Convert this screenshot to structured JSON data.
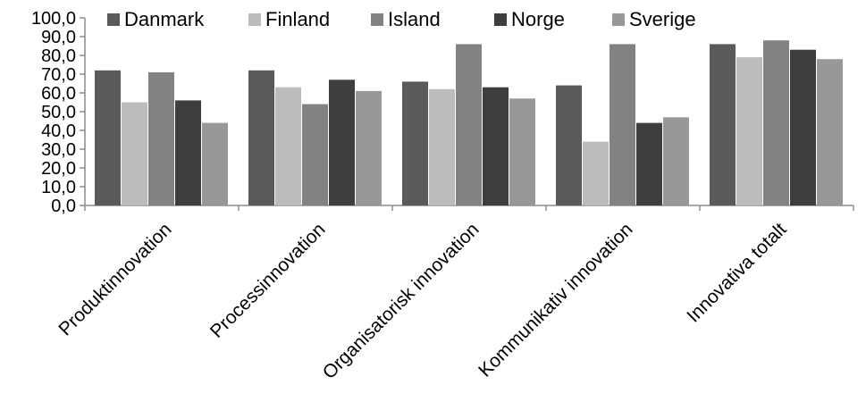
{
  "chart_data": {
    "type": "bar",
    "title": "",
    "xlabel": "",
    "ylabel": "",
    "ylim": [
      0,
      100
    ],
    "y_ticks": [
      "0,0",
      "10,0",
      "20,0",
      "30,0",
      "40,0",
      "50,0",
      "60,0",
      "70,0",
      "80,0",
      "90,0",
      "100,0"
    ],
    "categories": [
      "Produktinnovation",
      "Processinnovation",
      "Organisatorisk innovation",
      "Kommunikativ innovation",
      "Innovativa totalt"
    ],
    "series": [
      {
        "name": "Danmark",
        "color": "#5a5a5a",
        "values": [
          72,
          72,
          66,
          64,
          86
        ]
      },
      {
        "name": "Finland",
        "color": "#bcbcbc",
        "values": [
          55,
          63,
          62,
          34,
          79
        ]
      },
      {
        "name": "Island",
        "color": "#828282",
        "values": [
          71,
          54,
          86,
          86,
          88
        ]
      },
      {
        "name": "Norge",
        "color": "#3e3e3e",
        "values": [
          56,
          67,
          63,
          44,
          83
        ]
      },
      {
        "name": "Sverige",
        "color": "#989898",
        "values": [
          44,
          61,
          57,
          47,
          78
        ]
      }
    ],
    "legend_position": "top",
    "grid": false
  }
}
